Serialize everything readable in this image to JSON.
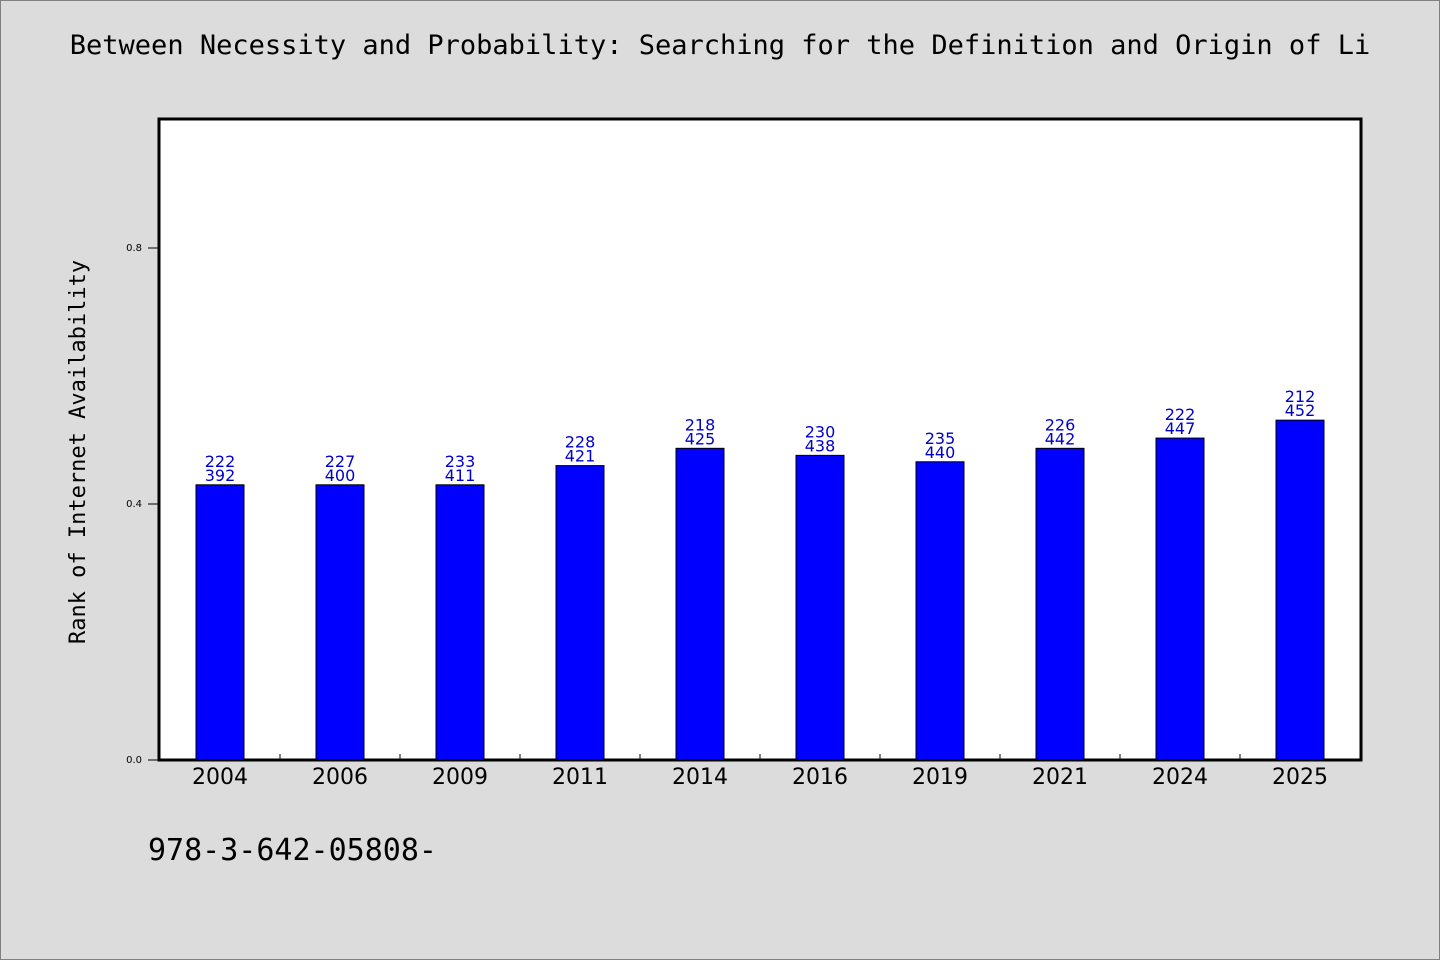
{
  "chart_data": {
    "type": "bar",
    "title": "Between Necessity and Probability: Searching for the Definition and Origin of Li",
    "xlabel": "",
    "ylabel": "Rank of Internet Availability",
    "ylim": [
      0,
      1.0
    ],
    "yticks": [
      "0.0",
      "0.4",
      "0.8"
    ],
    "grid": false,
    "legend": "none",
    "categories": [
      "2004",
      "2006",
      "2009",
      "2011",
      "2014",
      "2016",
      "2019",
      "2021",
      "2024",
      "2025"
    ],
    "values": [
      0.43,
      0.43,
      0.43,
      0.46,
      0.487,
      0.476,
      0.466,
      0.487,
      0.503,
      0.531
    ],
    "labels_top": [
      "222",
      "227",
      "233",
      "228",
      "218",
      "230",
      "235",
      "226",
      "222",
      "212"
    ],
    "labels_bottom": [
      "392",
      "400",
      "411",
      "421",
      "425",
      "438",
      "440",
      "442",
      "447",
      "452"
    ],
    "bar_color": "#0000ff",
    "label_color": "#0000cc"
  },
  "footnote": "978-3-642-05808-"
}
